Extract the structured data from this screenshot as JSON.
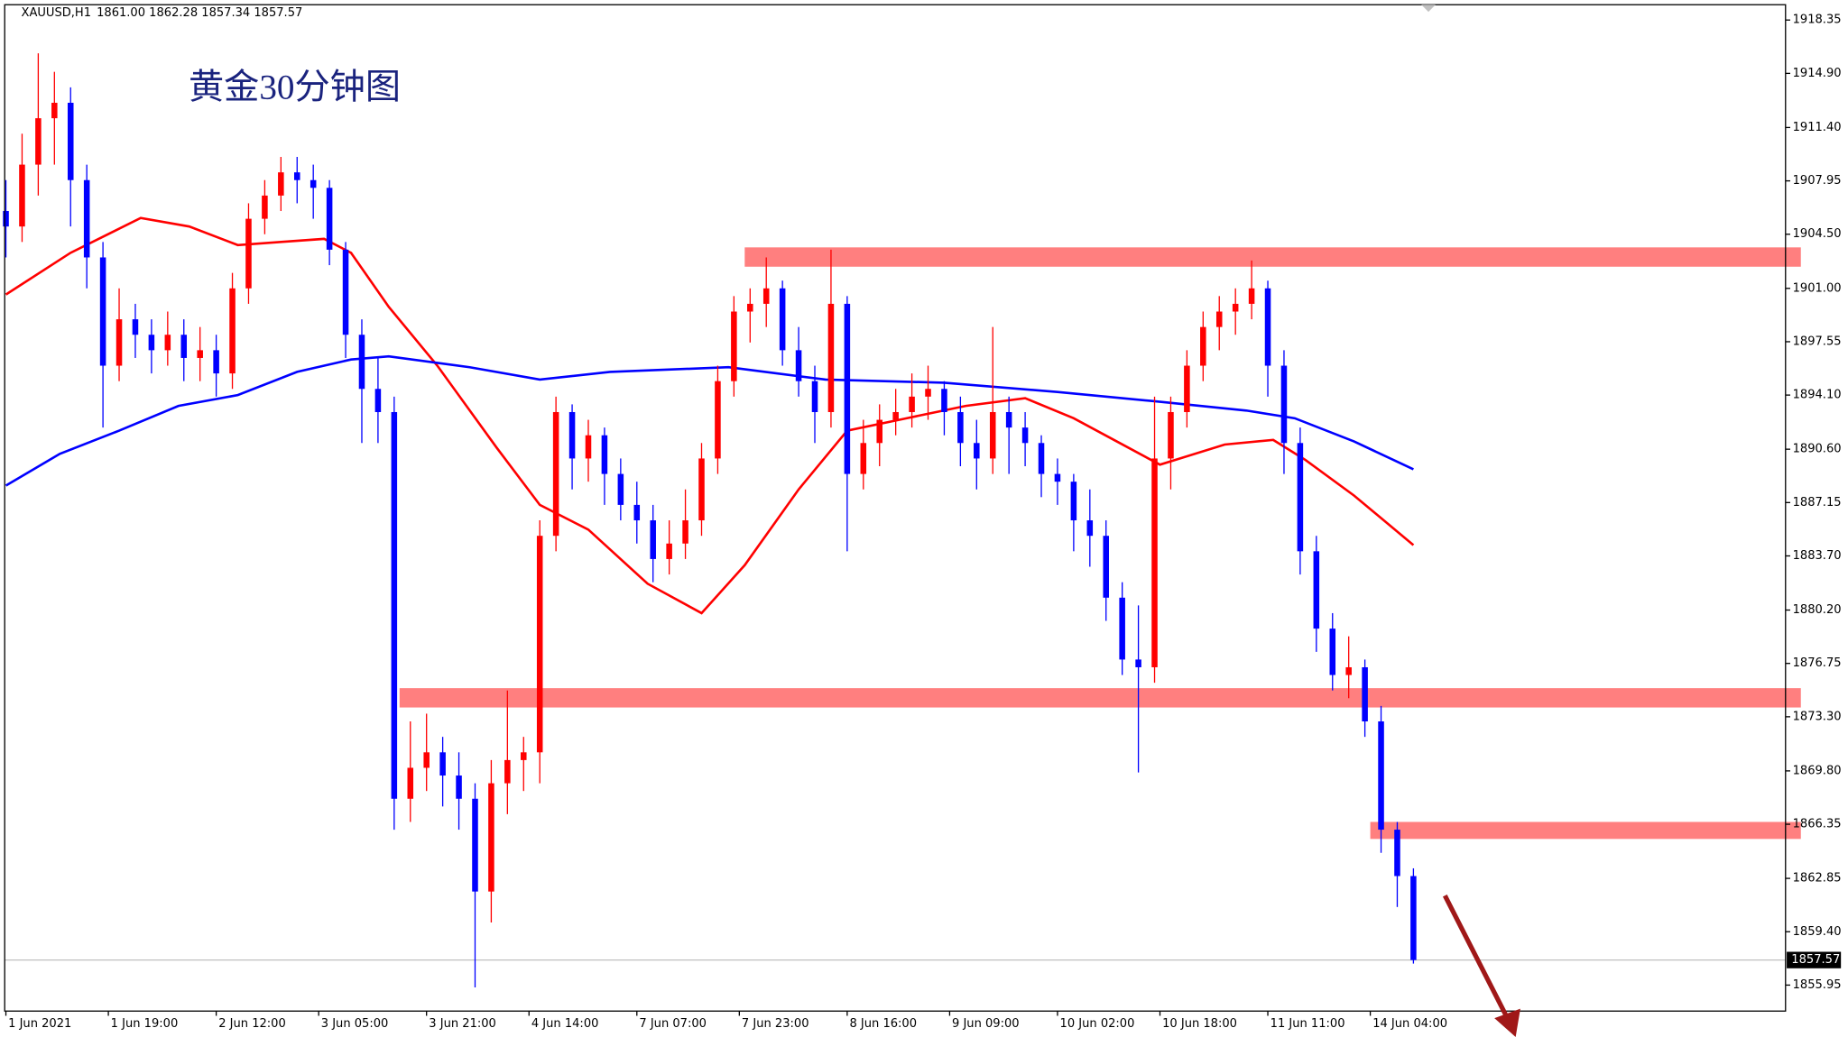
{
  "chart_data": {
    "type": "candlestick",
    "title": "黄金30分钟图",
    "symbol": "XAUUSD,H1",
    "header_prices": "1861.00 1862.28 1857.34 1857.57",
    "up_color": "#ff0000",
    "down_color": "#0000ff",
    "xlim": [
      0,
      330
    ],
    "ylim": [
      1854.27,
      1919.34
    ],
    "xticks": [
      {
        "value": 0,
        "label": "1 Jun 2021"
      },
      {
        "value": 19,
        "label": "1 Jun 19:00"
      },
      {
        "value": 39,
        "label": "2 Jun 12:00"
      },
      {
        "value": 58,
        "label": "3 Jun 05:00"
      },
      {
        "value": 78,
        "label": "3 Jun 21:00"
      },
      {
        "value": 97,
        "label": "4 Jun 14:00"
      },
      {
        "value": 117,
        "label": "7 Jun 07:00"
      },
      {
        "value": 136,
        "label": "7 Jun 23:00"
      },
      {
        "value": 156,
        "label": "8 Jun 16:00"
      },
      {
        "value": 175,
        "label": "9 Jun 09:00"
      },
      {
        "value": 195,
        "label": "10 Jun 02:00"
      },
      {
        "value": 214,
        "label": "10 Jun 18:00"
      },
      {
        "value": 234,
        "label": "11 Jun 11:00"
      },
      {
        "value": 253,
        "label": "14 Jun 04:00"
      }
    ],
    "yticks": [
      1918.35,
      {
        "value": 1914.9,
        "label": "1914.90"
      },
      {
        "value": 1911.4,
        "label": "1911.40"
      },
      1907.95,
      {
        "value": 1904.5,
        "label": "1904.50"
      },
      {
        "value": 1901,
        "label": "1901.00"
      },
      1897.55,
      {
        "value": 1894.1,
        "label": "1894.10"
      },
      {
        "value": 1890.6,
        "label": "1890.60"
      },
      1887.15,
      {
        "value": 1883.7,
        "label": "1883.70"
      },
      {
        "value": 1880.2,
        "label": "1880.20"
      },
      1876.75,
      {
        "value": 1873.3,
        "label": "1873.30"
      },
      {
        "value": 1869.8,
        "label": "1869.80"
      },
      1866.35,
      1862.85,
      {
        "value": 1859.4,
        "label": "1859.40"
      },
      1855.95
    ],
    "last_price": 1857.57,
    "x": [
      0,
      3,
      6,
      9,
      12,
      15,
      18,
      21,
      24,
      27,
      30,
      33,
      36,
      39,
      42,
      45,
      48,
      51,
      54,
      57,
      60,
      63,
      66,
      69,
      72,
      75,
      78,
      81,
      84,
      87,
      90,
      93,
      96,
      99,
      102,
      105,
      108,
      111,
      114,
      117,
      120,
      123,
      126,
      129,
      132,
      135,
      138,
      141,
      144,
      147,
      150,
      153,
      156,
      159,
      162,
      165,
      168,
      171,
      174,
      177,
      180,
      183,
      186,
      189,
      192,
      195,
      198,
      201,
      204,
      207,
      210,
      213,
      216,
      219,
      222,
      225,
      228,
      231,
      234,
      237,
      240,
      243,
      246,
      249,
      252,
      255,
      258,
      261
    ],
    "ohlc": [
      [
        1906,
        1908,
        1903,
        1905
      ],
      [
        1905,
        1911,
        1904,
        1909
      ],
      [
        1909,
        1916.2,
        1907,
        1912
      ],
      [
        1912,
        1915,
        1909,
        1913
      ],
      [
        1913,
        1914,
        1905,
        1908
      ],
      [
        1908,
        1909,
        1901,
        1903
      ],
      [
        1903,
        1904,
        1892,
        1896
      ],
      [
        1896,
        1901,
        1895,
        1899
      ],
      [
        1899,
        1900,
        1896.5,
        1898
      ],
      [
        1898,
        1899,
        1895.5,
        1897
      ],
      [
        1897,
        1899.5,
        1896,
        1898
      ],
      [
        1898,
        1899,
        1895,
        1896.5
      ],
      [
        1896.5,
        1898.5,
        1895,
        1897
      ],
      [
        1897,
        1898,
        1894,
        1895.5
      ],
      [
        1895.5,
        1902,
        1894.5,
        1901
      ],
      [
        1901,
        1906.5,
        1900,
        1905.5
      ],
      [
        1905.5,
        1908,
        1904.5,
        1907
      ],
      [
        1907,
        1909.5,
        1906,
        1908.5
      ],
      [
        1908.5,
        1909.5,
        1906.5,
        1908
      ],
      [
        1908,
        1909,
        1905.5,
        1907.5
      ],
      [
        1907.5,
        1908,
        1902.5,
        1903.5
      ],
      [
        1903.5,
        1904,
        1896.5,
        1898
      ],
      [
        1898,
        1899,
        1891,
        1894.5
      ],
      [
        1894.5,
        1896.5,
        1891,
        1893
      ],
      [
        1893,
        1894,
        1866,
        1868
      ],
      [
        1868,
        1873,
        1866.5,
        1870
      ],
      [
        1870,
        1873.5,
        1868.5,
        1871
      ],
      [
        1871,
        1872,
        1867.5,
        1869.5
      ],
      [
        1869.5,
        1871,
        1866,
        1868
      ],
      [
        1868,
        1869,
        1855.8,
        1862
      ],
      [
        1862,
        1870.5,
        1860,
        1869
      ],
      [
        1869,
        1875,
        1867,
        1870.5
      ],
      [
        1870.5,
        1872,
        1868.5,
        1871
      ],
      [
        1871,
        1886,
        1869,
        1885
      ],
      [
        1885,
        1894,
        1884,
        1893
      ],
      [
        1893,
        1893.5,
        1888,
        1890
      ],
      [
        1890,
        1892.5,
        1888.5,
        1891.5
      ],
      [
        1891.5,
        1892,
        1887,
        1889
      ],
      [
        1889,
        1890,
        1886,
        1887
      ],
      [
        1887,
        1888.5,
        1884.5,
        1886
      ],
      [
        1886,
        1887,
        1882,
        1883.5
      ],
      [
        1883.5,
        1886,
        1882.5,
        1884.5
      ],
      [
        1884.5,
        1888,
        1883.5,
        1886
      ],
      [
        1886,
        1891,
        1885,
        1890
      ],
      [
        1890,
        1896,
        1889,
        1895
      ],
      [
        1895,
        1900.5,
        1894,
        1899.5
      ],
      [
        1899.5,
        1901,
        1897.5,
        1900
      ],
      [
        1900,
        1903,
        1898.5,
        1901
      ],
      [
        1901,
        1901.5,
        1896,
        1897
      ],
      [
        1897,
        1898.5,
        1894,
        1895
      ],
      [
        1895,
        1896,
        1891,
        1893
      ],
      [
        1893,
        1903.5,
        1892,
        1900
      ],
      [
        1900,
        1900.5,
        1884,
        1889
      ],
      [
        1889,
        1892.5,
        1888,
        1891
      ],
      [
        1891,
        1893.5,
        1889.5,
        1892.5
      ],
      [
        1892.5,
        1894.5,
        1891.5,
        1893
      ],
      [
        1893,
        1895.5,
        1892,
        1894
      ],
      [
        1894,
        1896,
        1892.5,
        1894.5
      ],
      [
        1894.5,
        1895,
        1891.5,
        1893
      ],
      [
        1893,
        1894,
        1889.5,
        1891
      ],
      [
        1891,
        1892.5,
        1888,
        1890
      ],
      [
        1890,
        1898.5,
        1889,
        1893
      ],
      [
        1893,
        1894,
        1889,
        1892
      ],
      [
        1892,
        1893,
        1889.5,
        1891
      ],
      [
        1891,
        1891.5,
        1887.5,
        1889
      ],
      [
        1889,
        1890,
        1887,
        1888.5
      ],
      [
        1888.5,
        1889,
        1884,
        1886
      ],
      [
        1886,
        1888,
        1883,
        1885
      ],
      [
        1885,
        1886,
        1879.5,
        1881
      ],
      [
        1881,
        1882,
        1876,
        1877
      ],
      [
        1877,
        1880.5,
        1869.7,
        1876.5
      ],
      [
        1876.5,
        1894,
        1875.5,
        1890
      ],
      [
        1890,
        1894,
        1888,
        1893
      ],
      [
        1893,
        1897,
        1892,
        1896
      ],
      [
        1896,
        1899.5,
        1895,
        1898.5
      ],
      [
        1898.5,
        1900.5,
        1897,
        1899.5
      ],
      [
        1899.5,
        1901,
        1898,
        1900
      ],
      [
        1900,
        1902.8,
        1899,
        1901
      ],
      [
        1901,
        1901.5,
        1894,
        1896
      ],
      [
        1896,
        1897,
        1889,
        1891
      ],
      [
        1891,
        1892,
        1882.5,
        1884
      ],
      [
        1884,
        1885,
        1877.5,
        1879
      ],
      [
        1879,
        1880,
        1875,
        1876
      ],
      [
        1876,
        1878.5,
        1874.5,
        1876.5
      ],
      [
        1876.5,
        1877,
        1872,
        1873
      ],
      [
        1873,
        1874,
        1864.5,
        1866
      ],
      [
        1866,
        1866.5,
        1861,
        1863
      ],
      [
        1863,
        1863.5,
        1857.34,
        1857.57
      ]
    ],
    "lines": [
      {
        "color": "#ff0000",
        "x": [
          0,
          12,
          25,
          34,
          43,
          51,
          59,
          64,
          71,
          80,
          91,
          99,
          108,
          119,
          129,
          137,
          147,
          156,
          167,
          178,
          189,
          198,
          206,
          214,
          226,
          235,
          241,
          250,
          261
        ],
        "values": [
          1900.6,
          1903.3,
          1905.55,
          1905.0,
          1903.8,
          1904.0,
          1904.2,
          1903.3,
          1899.8,
          1896.0,
          1890.7,
          1887.0,
          1885.4,
          1881.9,
          1880.0,
          1883.1,
          1888.0,
          1891.8,
          1892.6,
          1893.4,
          1893.9,
          1892.6,
          1891.1,
          1889.6,
          1890.9,
          1891.2,
          1889.9,
          1887.6,
          1884.4
        ]
      },
      {
        "color": "#0000ff",
        "x": [
          0,
          10,
          21,
          32,
          43,
          54,
          64,
          71,
          86,
          99,
          112,
          134,
          152,
          174,
          195,
          213,
          230,
          239,
          250,
          261
        ],
        "values": [
          1888.25,
          1890.3,
          1891.8,
          1893.4,
          1894.1,
          1895.6,
          1896.4,
          1896.6,
          1895.9,
          1895.1,
          1895.6,
          1895.9,
          1895.1,
          1894.9,
          1894.3,
          1893.7,
          1893.1,
          1892.6,
          1891.1,
          1889.3
        ]
      }
    ],
    "zones": [
      {
        "from": 137,
        "low": 1902.4,
        "high": 1903.65
      },
      {
        "from": 73,
        "low": 1873.9,
        "high": 1875.15
      },
      {
        "from": 253,
        "low": 1865.4,
        "high": 1866.5
      }
    ],
    "zone_color": "#ff7f7f"
  }
}
